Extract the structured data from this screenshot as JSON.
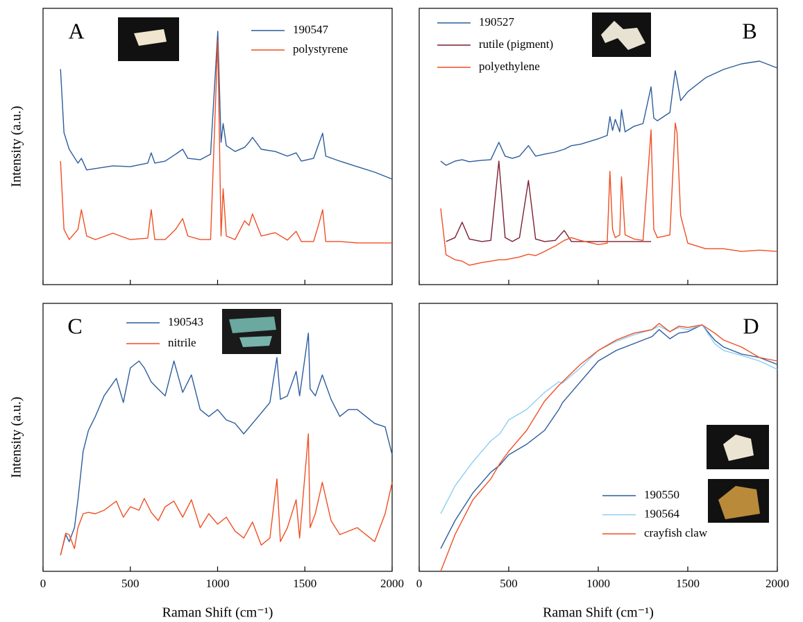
{
  "chart_data": [
    {
      "type": "line",
      "title": "A",
      "y_label": "Intensity (a.u.)",
      "legend": "top-right",
      "tick_labels": false,
      "xlim": [
        0,
        2000
      ],
      "xticks": [
        0,
        500,
        1000,
        1500,
        2000
      ],
      "ylim": [
        0,
        100
      ],
      "x": [
        100,
        120,
        150,
        200,
        220,
        250,
        300,
        400,
        500,
        600,
        620,
        640,
        700,
        760,
        800,
        830,
        900,
        960,
        1001,
        1020,
        1032,
        1050,
        1100,
        1155,
        1180,
        1200,
        1250,
        1330,
        1400,
        1450,
        1480,
        1550,
        1583,
        1602,
        1620,
        1700,
        1800,
        1900,
        2000
      ],
      "series": [
        {
          "name": "190547",
          "color": "#2b5c9c",
          "values": [
            78,
            55,
            49,
            44,
            45.7,
            41.5,
            42,
            43,
            42.7,
            44,
            47.7,
            44,
            44.7,
            47.2,
            49,
            45.7,
            45.2,
            47.2,
            91.7,
            51.5,
            58.3,
            50.3,
            48.2,
            49.7,
            51.5,
            53.3,
            49,
            48.2,
            46.5,
            47.7,
            44.7,
            45.7,
            51.5,
            54.8,
            46.5,
            44.7,
            42.7,
            40.7,
            38.2
          ]
        },
        {
          "name": "polystyrene",
          "color": "#f04e23",
          "values": [
            44.7,
            20,
            16.3,
            20,
            27.1,
            17.6,
            16.3,
            18.6,
            16.3,
            16.8,
            27.1,
            16.3,
            16.3,
            20,
            23.9,
            17.6,
            16.3,
            16.3,
            88.4,
            17.6,
            34.7,
            17.6,
            16.3,
            23.1,
            21.4,
            25.6,
            17.6,
            18.8,
            16.1,
            19.3,
            15.6,
            15.6,
            22.6,
            27.1,
            15.6,
            15.6,
            15.1,
            15.1,
            15.1
          ]
        }
      ]
    },
    {
      "type": "line",
      "title": "B",
      "legend": "top-left",
      "tick_labels": false,
      "xlim": [
        0,
        2000
      ],
      "xticks": [
        0,
        500,
        1000,
        1500,
        2000
      ],
      "ylim": [
        0,
        100
      ],
      "x": [
        120,
        150,
        200,
        240,
        280,
        350,
        400,
        445,
        480,
        520,
        560,
        610,
        650,
        700,
        760,
        810,
        850,
        900,
        1000,
        1050,
        1065,
        1080,
        1095,
        1120,
        1130,
        1150,
        1200,
        1250,
        1295,
        1310,
        1330,
        1400,
        1430,
        1440,
        1460,
        1500,
        1600,
        1700,
        1800,
        1900,
        2000
      ],
      "series": [
        {
          "name": "190527",
          "color": "#2b5c9c",
          "values": [
            44.7,
            43.2,
            44.7,
            45.2,
            44.5,
            45,
            45.2,
            51.5,
            46.5,
            45.7,
            46.5,
            50.3,
            46.5,
            47.2,
            48,
            49,
            50.3,
            50.8,
            52.8,
            54,
            60.8,
            55.8,
            59.8,
            55.3,
            63.3,
            55.3,
            57.3,
            58.3,
            71.6,
            60.3,
            59.3,
            62.3,
            77.4,
            74.1,
            66.6,
            69.8,
            74.9,
            77.9,
            79.9,
            80.9,
            78.4
          ]
        },
        {
          "name": "rutile (pigment)",
          "color": "#7a1f32",
          "values": [
            null,
            15.6,
            17,
            22.6,
            16.5,
            15.6,
            16,
            44.7,
            17,
            15.6,
            17,
            37.7,
            16.5,
            15.6,
            16,
            19.6,
            15.6,
            15.6,
            15.6,
            15.6,
            15.6,
            15.6,
            15.6,
            15.6,
            15.6,
            15.6,
            15.6,
            15.6,
            15.6,
            null,
            null,
            null,
            null,
            null,
            null,
            null,
            null,
            null,
            null,
            null,
            null
          ]
        },
        {
          "name": "polyethylene",
          "color": "#f04e23",
          "values": [
            27.6,
            10.8,
            9,
            8.5,
            7,
            8,
            8.5,
            9,
            9,
            9.5,
            10,
            11,
            10.5,
            12,
            14,
            16,
            17,
            16,
            14.5,
            15,
            41,
            20,
            17,
            18,
            39,
            18,
            16.5,
            16,
            56,
            20,
            17,
            18,
            58.5,
            55,
            25,
            15,
            13,
            13,
            12,
            12.5,
            12
          ]
        }
      ]
    },
    {
      "type": "line",
      "title": "C",
      "y_label": "Intensity (a.u.)",
      "x_label": "Raman Shift (cm⁻¹)",
      "legend": "top-center",
      "tick_labels": true,
      "xlim": [
        0,
        2000
      ],
      "xticks": [
        0,
        500,
        1000,
        1500,
        2000
      ],
      "ylim": [
        0,
        100
      ],
      "x": [
        100,
        130,
        150,
        180,
        200,
        230,
        260,
        300,
        350,
        420,
        460,
        500,
        550,
        580,
        620,
        660,
        700,
        750,
        800,
        850,
        900,
        950,
        1000,
        1050,
        1100,
        1150,
        1200,
        1250,
        1300,
        1340,
        1360,
        1400,
        1450,
        1470,
        1520,
        1530,
        1560,
        1600,
        1650,
        1700,
        1750,
        1800,
        1900,
        1960,
        2000
      ],
      "series": [
        {
          "name": "190543",
          "color": "#2b5c9c",
          "values": [
            6,
            13.7,
            11.1,
            16.3,
            26.7,
            44.8,
            52.6,
            57.8,
            65.5,
            72,
            63,
            75.9,
            78.5,
            75.9,
            70.7,
            68,
            65.5,
            78.5,
            66.8,
            73.3,
            60.4,
            57.8,
            60.4,
            56.5,
            55.2,
            51.3,
            55.2,
            59.1,
            63,
            79.8,
            64.2,
            65.5,
            74.6,
            65.5,
            88.9,
            68.1,
            65.5,
            73.3,
            64.2,
            57.8,
            60.4,
            60.4,
            55.2,
            53.9,
            43.5
          ]
        },
        {
          "name": "nitrile",
          "color": "#f04e23",
          "values": [
            6,
            14.2,
            13.7,
            8.5,
            16.3,
            21.5,
            22,
            21.5,
            22.8,
            26.2,
            20.2,
            24.1,
            22.8,
            27.2,
            22,
            18.9,
            24.1,
            26.2,
            20.2,
            26.7,
            16.3,
            21.5,
            17.6,
            20.2,
            15,
            12.4,
            18.4,
            9.8,
            12.4,
            34.5,
            11.1,
            16.3,
            26.7,
            12.4,
            51.3,
            16.3,
            21.5,
            33.2,
            18.9,
            13.7,
            15,
            16.3,
            11.1,
            21.5,
            33.2
          ]
        }
      ]
    },
    {
      "type": "line",
      "title": "D",
      "x_label": "Raman Shift (cm⁻¹)",
      "legend": "bottom-right",
      "tick_labels": true,
      "xlim": [
        0,
        2000
      ],
      "xticks": [
        0,
        500,
        1000,
        1500,
        2000
      ],
      "ylim": [
        0,
        100
      ],
      "x": [
        120,
        200,
        300,
        400,
        450,
        500,
        600,
        700,
        780,
        800,
        900,
        1000,
        1100,
        1200,
        1300,
        1340,
        1400,
        1450,
        1500,
        1580,
        1650,
        1700,
        1800,
        1900,
        2000
      ],
      "series": [
        {
          "name": "190550",
          "color": "#2b5c9c",
          "values": [
            8.5,
            18.9,
            29.3,
            37,
            39.6,
            43.5,
            47.4,
            52.6,
            60.4,
            62.9,
            70.7,
            78.5,
            82.4,
            85,
            87.6,
            90.2,
            86.8,
            88.9,
            89.4,
            92,
            86.3,
            83.7,
            81.1,
            79.8,
            77.2
          ]
        },
        {
          "name": "190564",
          "color": "#8ccdf5",
          "values": [
            21.5,
            31.9,
            40.9,
            48.7,
            51.3,
            56.5,
            60.4,
            66.8,
            70.7,
            70.2,
            75.9,
            82.4,
            85.8,
            88.3,
            90.2,
            91.5,
            89.4,
            91,
            90.2,
            92,
            85,
            82.4,
            80.6,
            78.5,
            75.4
          ]
        },
        {
          "name": "crayfish claw",
          "color": "#f04e23",
          "values": [
            0,
            13.7,
            26.7,
            34.5,
            40.2,
            44.8,
            52.6,
            63.5,
            69.4,
            70.7,
            77.2,
            82.4,
            86.3,
            88.9,
            90.2,
            92.5,
            89.4,
            91.5,
            91,
            92,
            88.9,
            86.3,
            83.7,
            79.8,
            78.5
          ]
        }
      ]
    }
  ]
}
